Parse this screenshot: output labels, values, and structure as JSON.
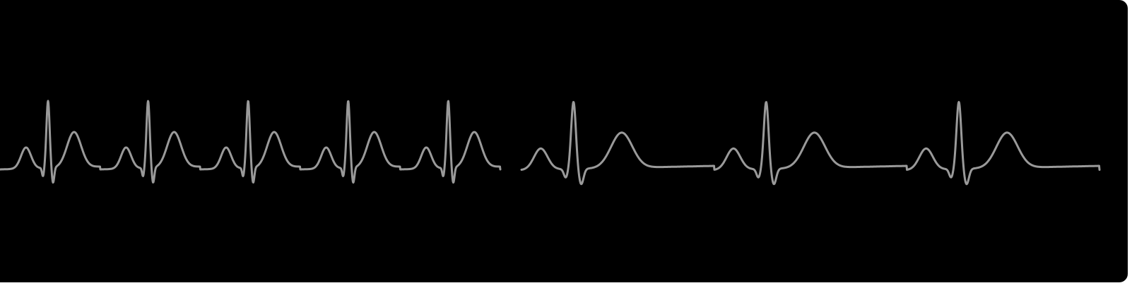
{
  "colors": {
    "background": "#000000",
    "trace": "#9a9a9a",
    "page": "#ffffff"
  },
  "ecg": {
    "segments": [
      {
        "rhythm": "fast",
        "beats": 5
      },
      {
        "rhythm": "slow",
        "beats": 3
      }
    ]
  }
}
